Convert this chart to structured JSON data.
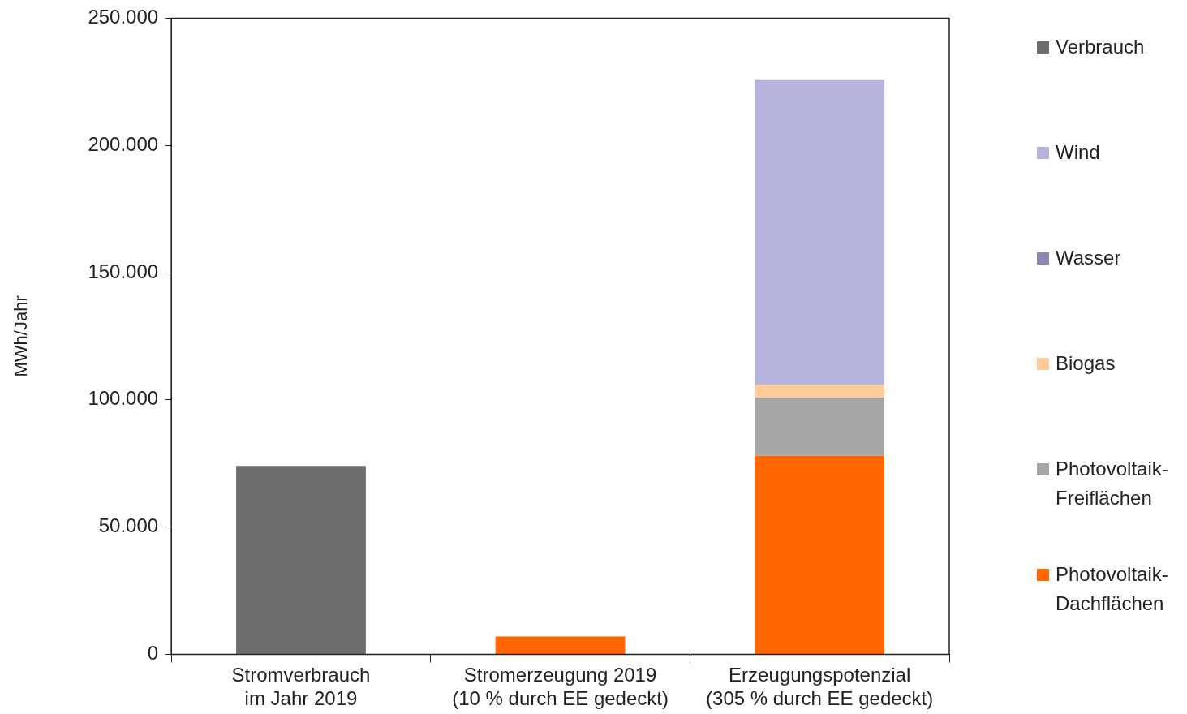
{
  "chart_data": {
    "type": "bar",
    "stacked": true,
    "ylabel": "MWh/Jahr",
    "categories": [
      "Stromverbrauch\nim Jahr 2019",
      "Stromerzeugung 2019\n(10 % durch EE gedeckt)",
      "Erzeugungspotenzial\n(305 % durch EE gedeckt)"
    ],
    "series": [
      {
        "name": "Photovoltaik-Dachflächen",
        "color": "#ff6600",
        "values": [
          null,
          7000,
          78000
        ]
      },
      {
        "name": "Photovoltaik-Freiflächen",
        "color": "#a6a6a6",
        "values": [
          null,
          null,
          23000
        ]
      },
      {
        "name": "Biogas",
        "color": "#ffcc99",
        "values": [
          null,
          null,
          5000
        ]
      },
      {
        "name": "Wasser",
        "color": "#8e86ae",
        "values": [
          null,
          null,
          null
        ]
      },
      {
        "name": "Wind",
        "color": "#b4b4dc",
        "values": [
          null,
          null,
          120000
        ]
      },
      {
        "name": "Verbrauch",
        "color": "#6d6d6d",
        "values": [
          74000,
          null,
          null
        ]
      }
    ],
    "ylim": [
      0,
      250000
    ],
    "yticks": [
      {
        "value": 0,
        "label": "0"
      },
      {
        "value": 50000,
        "label": "50.000"
      },
      {
        "value": 100000,
        "label": "100.000"
      },
      {
        "value": 150000,
        "label": "150.000"
      },
      {
        "value": 200000,
        "label": "200.000"
      },
      {
        "value": 250000,
        "label": "250.000"
      }
    ],
    "grid": false,
    "legend": "right"
  }
}
